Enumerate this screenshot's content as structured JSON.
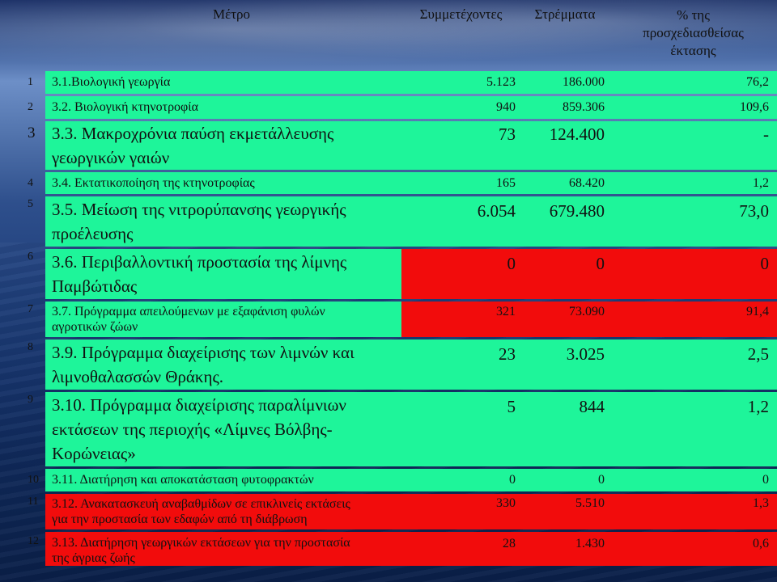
{
  "header": {
    "measure": "Μέτρο",
    "participants": "Συμμετέχοντες",
    "stremmata": "Στρέμματα",
    "percent_line1": "% της",
    "percent_line2": "προσχεδιασθείσας",
    "percent_line3": "έκτασης"
  },
  "rows": [
    {
      "num": "1",
      "measure": "3.1.Βιολογική γεωργία",
      "participants": "5.123",
      "stremmata": "186.000",
      "percent": "76,2"
    },
    {
      "num": "2",
      "measure": "3.2. Βιολογική κτηνοτροφία",
      "participants": "940",
      "stremmata": "859.306",
      "percent": "109,6"
    },
    {
      "num": "3",
      "measure_line1": "3.3. Μακροχρόνια παύση εκμετάλλευσης",
      "measure_line2": "γεωργικών γαιών",
      "participants": "73",
      "stremmata": "124.400",
      "percent": "-"
    },
    {
      "num": "4",
      "measure": "3.4. Εκτατικοποίηση της κτηνοτροφίας",
      "participants": "165",
      "stremmata": "68.420",
      "percent": "1,2"
    },
    {
      "num": "5",
      "measure_line1": "3.5. Μείωση της νιτρορύπανσης γεωργικής",
      "measure_line2": "προέλευσης",
      "participants": "6.054",
      "stremmata": "679.480",
      "percent": "73,0"
    },
    {
      "num": "6",
      "measure_line1": "3.6. Περιβαλλοντική προστασία της λίμνης",
      "measure_line2": "Παμβώτιδας",
      "participants": "0",
      "stremmata": "0",
      "percent": "0"
    },
    {
      "num": "7",
      "measure_line1": "3.7. Πρόγραμμα απειλούμενων με εξαφάνιση φυλών",
      "measure_line2": "αγροτικών ζώων",
      "participants": "321",
      "stremmata": "73.090",
      "percent": "91,4"
    },
    {
      "num": "8",
      "measure_line1": "3.9. Πρόγραμμα διαχείρισης των λιμνών και",
      "measure_line2": "λιμνοθαλασσών Θράκης.",
      "participants": "23",
      "stremmata": "3.025",
      "percent": "2,5"
    },
    {
      "num": "9",
      "measure_line1": "3.10. Πρόγραμμα διαχείρισης παραλίμνιων",
      "measure_line2": "εκτάσεων της περιοχής «Λίμνες Βόλβης-",
      "measure_line3": "Κορώνειας»",
      "participants": "5",
      "stremmata": "844",
      "percent": "1,2"
    },
    {
      "num": "10",
      "measure": "3.11. Διατήρηση και αποκατάσταση φυτοφρακτών",
      "participants": "0",
      "stremmata": "0",
      "percent": "0"
    },
    {
      "num": "11",
      "measure_line1": "3.12. Ανακατασκευή αναβαθμίδων σε επικλινείς εκτάσεις",
      "measure_line2": "για την προστασία των εδαφών από τη διάβρωση",
      "participants": "330",
      "stremmata": "5.510",
      "percent": "1,3"
    },
    {
      "num": "12",
      "measure_line1": "3.13. Διατήρηση γεωργικών εκτάσεων για την προστασία",
      "measure_line2": "της άγριας ζωής",
      "participants": "28",
      "stremmata": "1.430",
      "percent": "0,6"
    }
  ],
  "colors": {
    "green": "#1ef59a",
    "red": "#f20c0c"
  }
}
